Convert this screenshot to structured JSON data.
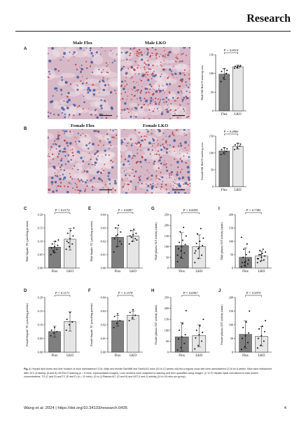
{
  "header": {
    "title": "Research"
  },
  "footer": {
    "citation": "Wang et al. 2024 | https://doi.org/10.34133/research.0435",
    "page": "4"
  },
  "panels": {
    "A": {
      "letter": "A",
      "left_title": "Male Flox",
      "right_title": "Male LKO"
    },
    "B": {
      "letter": "B",
      "left_title": "Female Flox",
      "right_title": "Female LKO"
    },
    "C": {
      "letter": "C"
    },
    "D": {
      "letter": "D"
    },
    "E": {
      "letter": "E"
    },
    "F": {
      "letter": "F"
    },
    "G": {
      "letter": "G"
    },
    "H": {
      "letter": "H"
    },
    "I": {
      "letter": "I"
    },
    "J": {
      "letter": "J"
    }
  },
  "caption": {
    "label": "Fig. 2.",
    "text": " Hepatic lipid levels and liver function of mice administered CCl4. Male and female Sarf4fl/fl and Sarf4LKO mice (10 to 12 weeks old) fed a regular chow diet were administered CCl4 for 6 weeks. Mice were euthanized after 10 h of fasting. (A and B) Oil Red O staining (n = 6 mice, representative images). Liver sections were subjected to staining and then quantified using ImageJ. (C to F) Hepatic lipids normalized to total protein concentrations. TG (C and D) and TC (E and F) (n = 10 mice). (G to J) Plasma ALT (G and H) and AST (I and J) activity (14 to 16 mice per group)."
  },
  "chart_data": [
    {
      "panel": "A",
      "type": "bar",
      "categories": [
        "Flox",
        "LKO"
      ],
      "ylabel": "Male-Oil Red O staining area",
      "pvalue": "P = 0.0014",
      "ylim": [
        0,
        150
      ],
      "yticks": [
        0,
        50,
        100,
        150
      ],
      "values": [
        98,
        118
      ],
      "errors": [
        15,
        4
      ],
      "points": [
        [
          78,
          88,
          100,
          105,
          112,
          108
        ],
        [
          114,
          116,
          118,
          119,
          120,
          121
        ]
      ]
    },
    {
      "panel": "B",
      "type": "bar",
      "categories": [
        "Flox",
        "LKO"
      ],
      "ylabel": "Female-Oil Red O staining area",
      "pvalue": "P = 0.0860",
      "ylim": [
        0,
        150
      ],
      "yticks": [
        0,
        50,
        100,
        150
      ],
      "values": [
        106,
        120
      ],
      "errors": [
        10,
        9
      ],
      "points": [
        [
          95,
          100,
          104,
          110,
          115,
          112
        ],
        [
          110,
          115,
          120,
          124,
          128,
          126
        ]
      ]
    },
    {
      "panel": "C",
      "type": "bar",
      "categories": [
        "Flox",
        "LKO"
      ],
      "ylabel": "Male-hepatic TG (μmol/mg protein)",
      "pvalue": "P = 0.0172",
      "ylim": [
        0,
        0.2
      ],
      "yticks": [
        0,
        0.05,
        0.1,
        0.15,
        0.2
      ],
      "yticklabels": [
        "0.00",
        "0.05",
        "0.10",
        "0.15",
        "0.20"
      ],
      "values": [
        0.078,
        0.108
      ],
      "errors": [
        0.022,
        0.04
      ],
      "points": [
        [
          0.05,
          0.06,
          0.07,
          0.075,
          0.08,
          0.085,
          0.09,
          0.1,
          0.105,
          0.065
        ],
        [
          0.07,
          0.08,
          0.09,
          0.1,
          0.11,
          0.12,
          0.13,
          0.14,
          0.15,
          0.095
        ]
      ]
    },
    {
      "panel": "D",
      "type": "bar",
      "categories": [
        "Flox",
        "LKO"
      ],
      "ylabel": "Female-hepatic TG (μmol/mg protein)",
      "pvalue": "P = 0.1171",
      "ylim": [
        0,
        0.2
      ],
      "yticks": [
        0,
        0.05,
        0.1,
        0.15,
        0.2
      ],
      "yticklabels": [
        "0.00",
        "0.05",
        "0.10",
        "0.15",
        "0.20"
      ],
      "values": [
        0.075,
        0.112
      ],
      "errors": [
        0.02,
        0.035
      ],
      "points": [
        [
          0.06,
          0.07,
          0.075,
          0.08,
          0.09
        ],
        [
          0.08,
          0.1,
          0.11,
          0.12,
          0.145
        ]
      ]
    },
    {
      "panel": "E",
      "type": "bar",
      "categories": [
        "Flox",
        "LKO"
      ],
      "ylabel": "Male-hepatic TC (μmol/mg protein)",
      "pvalue": "P = 0.8497",
      "ylim": [
        0,
        0.04
      ],
      "yticks": [
        0,
        0.01,
        0.02,
        0.03,
        0.04
      ],
      "yticklabels": [
        "0.00",
        "0.01",
        "0.02",
        "0.03",
        "0.04"
      ],
      "values": [
        0.023,
        0.024
      ],
      "errors": [
        0.007,
        0.004
      ],
      "points": [
        [
          0.012,
          0.016,
          0.02,
          0.022,
          0.025,
          0.027,
          0.03,
          0.032,
          0.018,
          0.024
        ],
        [
          0.018,
          0.02,
          0.022,
          0.024,
          0.025,
          0.026,
          0.028,
          0.029,
          0.021,
          0.023
        ]
      ]
    },
    {
      "panel": "F",
      "type": "bar",
      "categories": [
        "Flox",
        "LKO"
      ],
      "ylabel": "Female-hepatic TC (μmol/mg protein)",
      "pvalue": "P = 0.1578",
      "ylim": [
        0,
        0.04
      ],
      "yticks": [
        0,
        0.01,
        0.02,
        0.03,
        0.04
      ],
      "yticklabels": [
        "0.00",
        "0.01",
        "0.02",
        "0.03",
        "0.04"
      ],
      "values": [
        0.023,
        0.027
      ],
      "errors": [
        0.004,
        0.003
      ],
      "points": [
        [
          0.018,
          0.021,
          0.023,
          0.026,
          0.028
        ],
        [
          0.023,
          0.025,
          0.027,
          0.029,
          0.031
        ]
      ]
    },
    {
      "panel": "G",
      "type": "bar",
      "categories": [
        "Flox",
        "LKO"
      ],
      "ylabel": "Male-plasma ALT activity (units)",
      "pvalue": "P = 0.8059",
      "ylim": [
        0,
        250
      ],
      "yticks": [
        0,
        50,
        100,
        150,
        200,
        250
      ],
      "values": [
        105,
        100
      ],
      "errors": [
        60,
        55
      ],
      "points": [
        [
          30,
          50,
          70,
          90,
          100,
          110,
          120,
          130,
          150,
          170,
          190,
          60,
          80
        ],
        [
          25,
          45,
          60,
          80,
          95,
          105,
          115,
          125,
          140,
          160,
          185,
          70,
          90
        ]
      ]
    },
    {
      "panel": "H",
      "type": "bar",
      "categories": [
        "Flox",
        "LKO"
      ],
      "ylabel": "Female-plasma ALT activity (units)",
      "pvalue": "P = 0.6967",
      "ylim": [
        0,
        250
      ],
      "yticks": [
        0,
        50,
        100,
        150,
        200,
        250
      ],
      "values": [
        70,
        75
      ],
      "errors": [
        65,
        50
      ],
      "points": [
        [
          10,
          20,
          40,
          60,
          70,
          80,
          100,
          130,
          190
        ],
        [
          15,
          30,
          50,
          65,
          80,
          90,
          100,
          120,
          150
        ]
      ]
    },
    {
      "panel": "I",
      "type": "bar",
      "categories": [
        "Flox",
        "LKO"
      ],
      "ylabel": "Male-plasma AST activity (units)",
      "pvalue": "P = 0.7385",
      "ylim": [
        0,
        200
      ],
      "yticks": [
        0,
        50,
        100,
        150,
        200
      ],
      "values": [
        40,
        45
      ],
      "errors": [
        35,
        18
      ],
      "points": [
        [
          5,
          10,
          15,
          20,
          25,
          30,
          40,
          50,
          60,
          70,
          90,
          115,
          20
        ],
        [
          20,
          25,
          30,
          35,
          40,
          45,
          50,
          55,
          60,
          65,
          70,
          35,
          50
        ]
      ]
    },
    {
      "panel": "J",
      "type": "bar",
      "categories": [
        "Flox",
        "LKO"
      ],
      "ylabel": "Female-plasma AST activity (units)",
      "pvalue": "P = 0.5970",
      "ylim": [
        0,
        200
      ],
      "yticks": [
        0,
        50,
        100,
        150,
        200
      ],
      "values": [
        65,
        58
      ],
      "errors": [
        50,
        35
      ],
      "points": [
        [
          10,
          20,
          35,
          50,
          60,
          70,
          90,
          110,
          150
        ],
        [
          15,
          25,
          40,
          50,
          60,
          75,
          85,
          95,
          115
        ]
      ]
    }
  ],
  "colors": {
    "flox_bar": "#7f7f7f",
    "lko_bar": "#e6e6e6",
    "stain_background": "#d7b8c6",
    "nuclei": "#3f5fa8",
    "lipid": "#c0303a"
  }
}
